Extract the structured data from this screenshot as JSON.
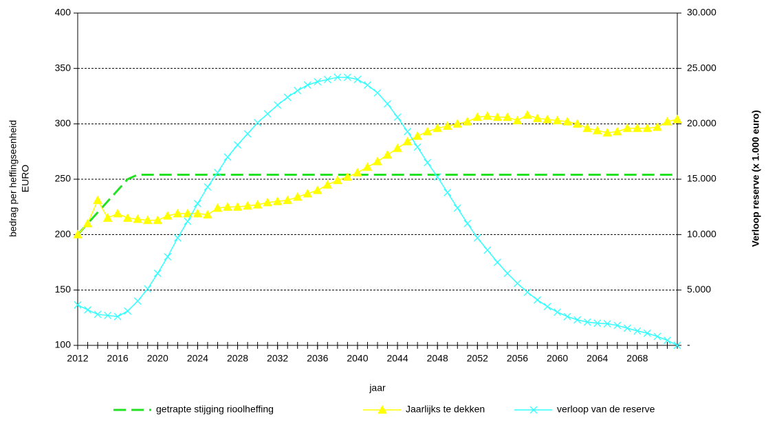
{
  "chart_data": {
    "type": "line",
    "x_label": "jaar",
    "y_label": [
      "bedrag per heffingseenheid",
      "EURO"
    ],
    "y2_label": "Verloop reserve (x 1.000 euro)",
    "x": [
      2012,
      2013,
      2014,
      2015,
      2016,
      2017,
      2018,
      2019,
      2020,
      2021,
      2022,
      2023,
      2024,
      2025,
      2026,
      2027,
      2028,
      2029,
      2030,
      2031,
      2032,
      2033,
      2034,
      2035,
      2036,
      2037,
      2038,
      2039,
      2040,
      2041,
      2042,
      2043,
      2044,
      2045,
      2046,
      2047,
      2048,
      2049,
      2050,
      2051,
      2052,
      2053,
      2054,
      2055,
      2056,
      2057,
      2058,
      2059,
      2060,
      2061,
      2062,
      2063,
      2064,
      2065,
      2066,
      2067,
      2068,
      2069,
      2070,
      2071,
      2072
    ],
    "xlim": [
      2012,
      2072
    ],
    "xticks": [
      2012,
      2016,
      2020,
      2024,
      2028,
      2032,
      2036,
      2040,
      2044,
      2048,
      2052,
      2056,
      2060,
      2064,
      2068
    ],
    "ylim": [
      100,
      400
    ],
    "yticks": [
      100,
      150,
      200,
      250,
      300,
      350,
      400
    ],
    "y2lim": [
      0,
      30000
    ],
    "y2ticks": [
      {
        "value": 0,
        "label": "-"
      },
      {
        "value": 5000,
        "label": "5.000"
      },
      {
        "value": 10000,
        "label": "10.000"
      },
      {
        "value": 15000,
        "label": "15.000"
      },
      {
        "value": 20000,
        "label": "20.000"
      },
      {
        "value": 25000,
        "label": "25.000"
      },
      {
        "value": 30000,
        "label": "30.000"
      }
    ],
    "grid": true,
    "legend": "bottom",
    "series": [
      {
        "name": "getrapte stijging rioolheffing",
        "color": "#22e022",
        "style": "dashed",
        "values": [
          200,
          210,
          220,
          230,
          240,
          250,
          254,
          254,
          254,
          254,
          254,
          254,
          254,
          254,
          254,
          254,
          254,
          254,
          254,
          254,
          254,
          254,
          254,
          254,
          254,
          254,
          254,
          254,
          254,
          254,
          254,
          254,
          254,
          254,
          254,
          254,
          254,
          254,
          254,
          254,
          254,
          254,
          254,
          254,
          254,
          254,
          254,
          254,
          254,
          254,
          254,
          254,
          254,
          254,
          254,
          254,
          254,
          254,
          254,
          254,
          254
        ]
      },
      {
        "name": "Jaarlijks te dekken",
        "color": "#ffff00",
        "marker": "triangle",
        "values": [
          200,
          210,
          231,
          215,
          219,
          215,
          214,
          213,
          213,
          217,
          219,
          219,
          219,
          218,
          224,
          225,
          225,
          226,
          227,
          229,
          230,
          231,
          234,
          237,
          240,
          245,
          249,
          252,
          256,
          261,
          266,
          272,
          278,
          284,
          289,
          293,
          296,
          298,
          300,
          302,
          306,
          307,
          306,
          306,
          303,
          308,
          305,
          304,
          303,
          302,
          300,
          296,
          294,
          292,
          293,
          296,
          296,
          296,
          297,
          302,
          304
        ]
      },
      {
        "name": "verloop van de reserve",
        "color": "#33ffff",
        "marker": "x",
        "axis": "y2",
        "values": [
          3650,
          3200,
          2800,
          2700,
          2600,
          3100,
          4000,
          5100,
          6500,
          8000,
          9700,
          11200,
          12800,
          14300,
          15600,
          17000,
          18100,
          19100,
          20100,
          20900,
          21700,
          22400,
          23000,
          23500,
          23800,
          24000,
          24200,
          24200,
          24000,
          23500,
          22800,
          21800,
          20600,
          19300,
          17900,
          16500,
          15200,
          13800,
          12400,
          11000,
          9700,
          8600,
          7500,
          6500,
          5600,
          4800,
          4100,
          3500,
          3000,
          2600,
          2300,
          2100,
          2000,
          1950,
          1800,
          1550,
          1300,
          1100,
          800,
          450,
          0
        ]
      }
    ]
  }
}
